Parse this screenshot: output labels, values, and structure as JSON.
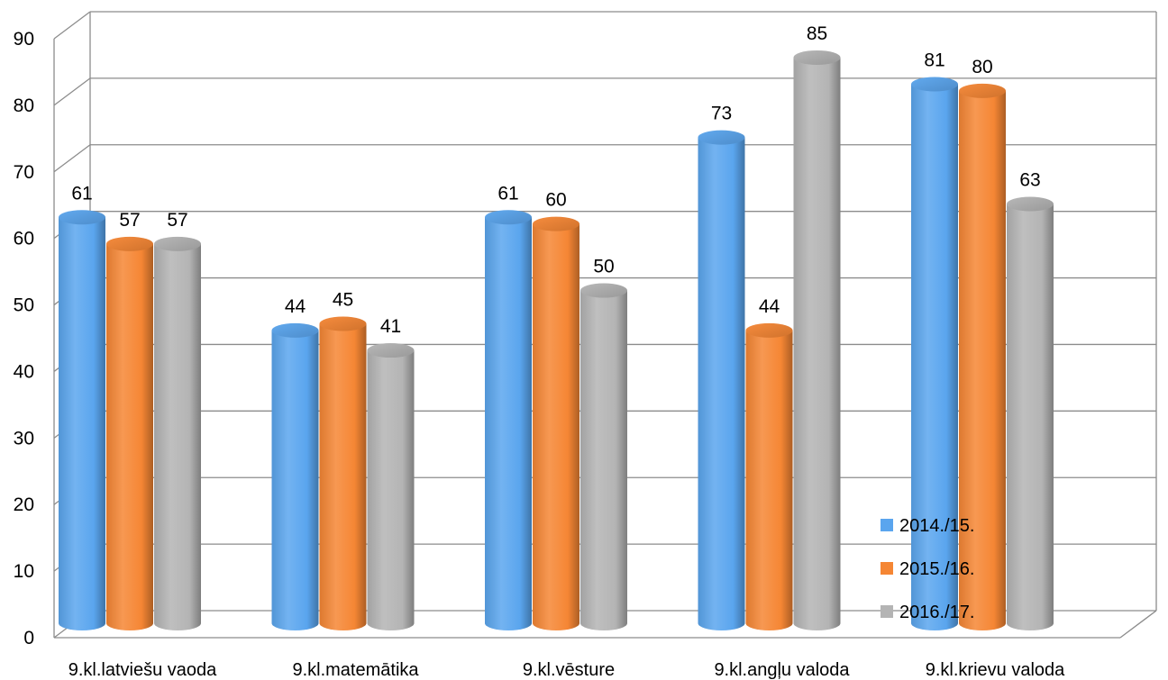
{
  "chart_data": {
    "type": "bar",
    "style": "3d-cylinder",
    "categories": [
      "9.kl.latviešu vaoda",
      "9.kl.matemātika",
      "9.kl.vēsture",
      "9.kl.angļu valoda",
      "9.kl.krievu valoda"
    ],
    "series": [
      {
        "name": "2014./15.",
        "color": "#5aa5ee",
        "values": [
          61,
          44,
          61,
          73,
          81
        ]
      },
      {
        "name": "2015./16.",
        "color": "#f58634",
        "values": [
          57,
          45,
          60,
          44,
          80
        ]
      },
      {
        "name": "2016./17.",
        "color": "#b4b4b4",
        "values": [
          57,
          41,
          50,
          85,
          63
        ]
      }
    ],
    "ylim": [
      0,
      90
    ],
    "yticks": [
      0,
      10,
      20,
      30,
      40,
      50,
      60,
      70,
      80,
      90
    ],
    "title": "",
    "xlabel": "",
    "ylabel": "",
    "grid": true,
    "legend_position": "bottom-right"
  }
}
